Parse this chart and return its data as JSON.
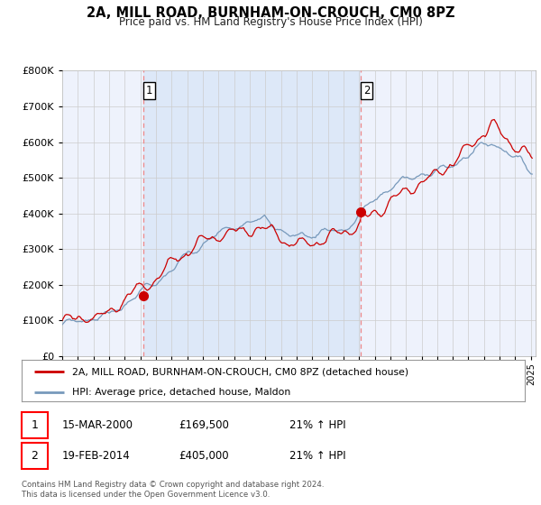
{
  "title": "2A, MILL ROAD, BURNHAM-ON-CROUCH, CM0 8PZ",
  "subtitle": "Price paid vs. HM Land Registry's House Price Index (HPI)",
  "legend_line1": "2A, MILL ROAD, BURNHAM-ON-CROUCH, CM0 8PZ (detached house)",
  "legend_line2": "HPI: Average price, detached house, Maldon",
  "transaction1_date": "15-MAR-2000",
  "transaction1_price": "£169,500",
  "transaction1_hpi": "21% ↑ HPI",
  "transaction2_date": "19-FEB-2014",
  "transaction2_price": "£405,000",
  "transaction2_hpi": "21% ↑ HPI",
  "footer": "Contains HM Land Registry data © Crown copyright and database right 2024.\nThis data is licensed under the Open Government Licence v3.0.",
  "red_color": "#cc0000",
  "blue_color": "#7799bb",
  "vline_color": "#ee8888",
  "shade_color": "#dde8f8",
  "bg_color": "#eef2fc",
  "grid_color": "#cccccc",
  "ylim": [
    0,
    800000
  ],
  "yticks": [
    0,
    100000,
    200000,
    300000,
    400000,
    500000,
    600000,
    700000,
    800000
  ],
  "marker1_x": 2000.21,
  "marker1_y": 169500,
  "marker2_x": 2014.12,
  "marker2_y": 405000,
  "vline1_x": 2000.21,
  "vline2_x": 2014.12,
  "xmin": 1995,
  "xmax": 2025.3
}
